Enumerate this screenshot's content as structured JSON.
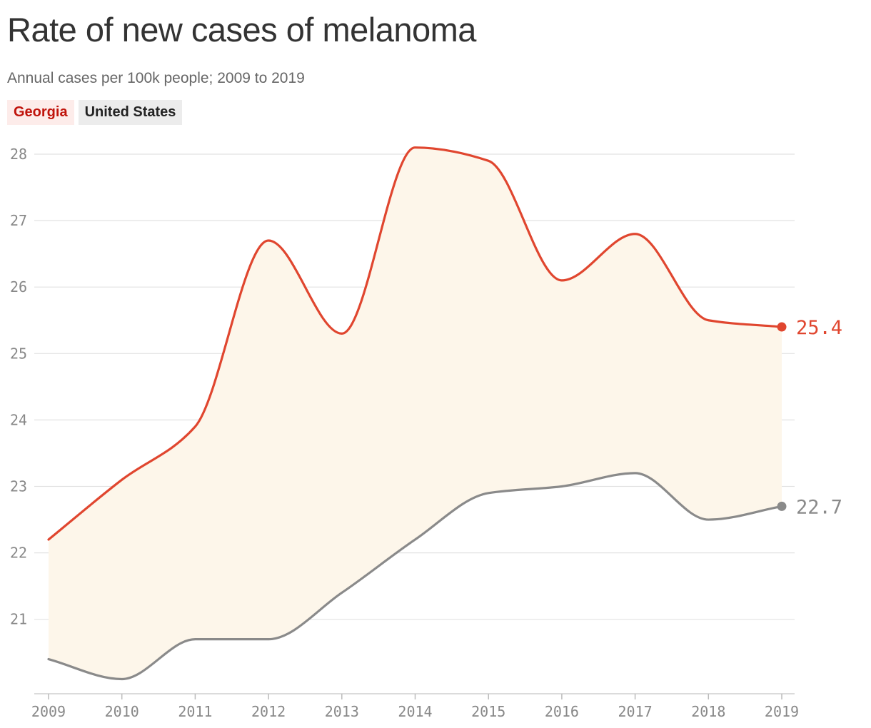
{
  "title": "Rate of new cases of melanoma",
  "subtitle": "Annual cases per 100k people; 2009 to 2019",
  "colors": {
    "georgia": "#e0462f",
    "united_states": "#8a8a8a",
    "fill": "#fdf6ea",
    "grid": "#e2e2e2"
  },
  "chart_data": {
    "type": "line",
    "x": [
      "2009",
      "2010",
      "2011",
      "2012",
      "2013",
      "2014",
      "2015",
      "2016",
      "2017",
      "2018",
      "2019"
    ],
    "series": [
      {
        "name": "Georgia",
        "values": [
          22.2,
          23.1,
          23.9,
          26.7,
          25.3,
          28.1,
          27.9,
          26.1,
          26.8,
          25.5,
          25.4
        ],
        "end_label": "25.4"
      },
      {
        "name": "United States",
        "values": [
          20.4,
          20.1,
          20.7,
          20.7,
          21.4,
          22.2,
          22.9,
          23.0,
          23.2,
          22.5,
          22.7
        ],
        "end_label": "22.7"
      }
    ],
    "yticks": [
      "21",
      "22",
      "23",
      "24",
      "25",
      "26",
      "27",
      "28"
    ],
    "ylim": [
      20.0,
      28.0
    ],
    "grid": true,
    "legend": "top-left",
    "shaded_between_series": true
  }
}
